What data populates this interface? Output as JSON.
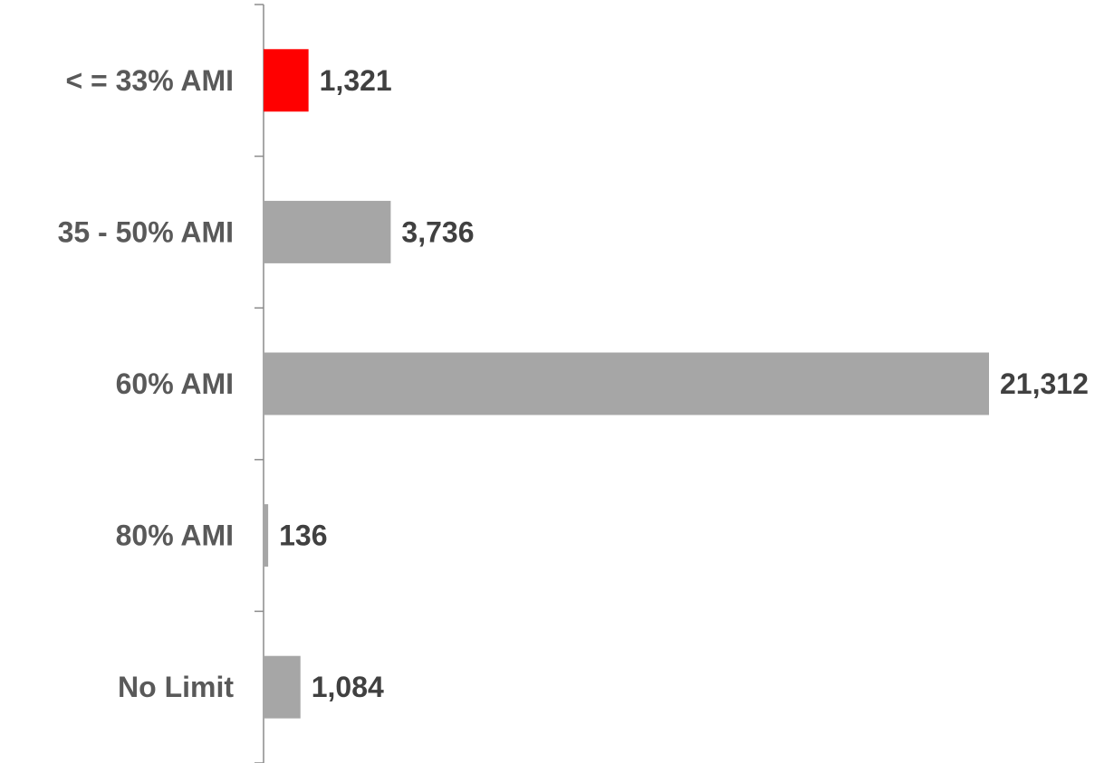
{
  "chart_data": {
    "type": "bar",
    "orientation": "horizontal",
    "title": "",
    "xlabel": "",
    "ylabel": "",
    "categories": [
      "< = 33% AMI",
      "35 - 50% AMI",
      "60% AMI",
      "80% AMI",
      "No Limit"
    ],
    "values": [
      1321,
      3736,
      21312,
      136,
      1084
    ],
    "value_labels": [
      "1,321",
      "3,736",
      "21,312",
      "136",
      "1,084"
    ],
    "bar_colors": [
      "#ff0000",
      "#a6a6a6",
      "#a6a6a6",
      "#a6a6a6",
      "#a6a6a6"
    ],
    "xlim": [
      0,
      21312
    ],
    "grid": false,
    "legend": "none"
  }
}
